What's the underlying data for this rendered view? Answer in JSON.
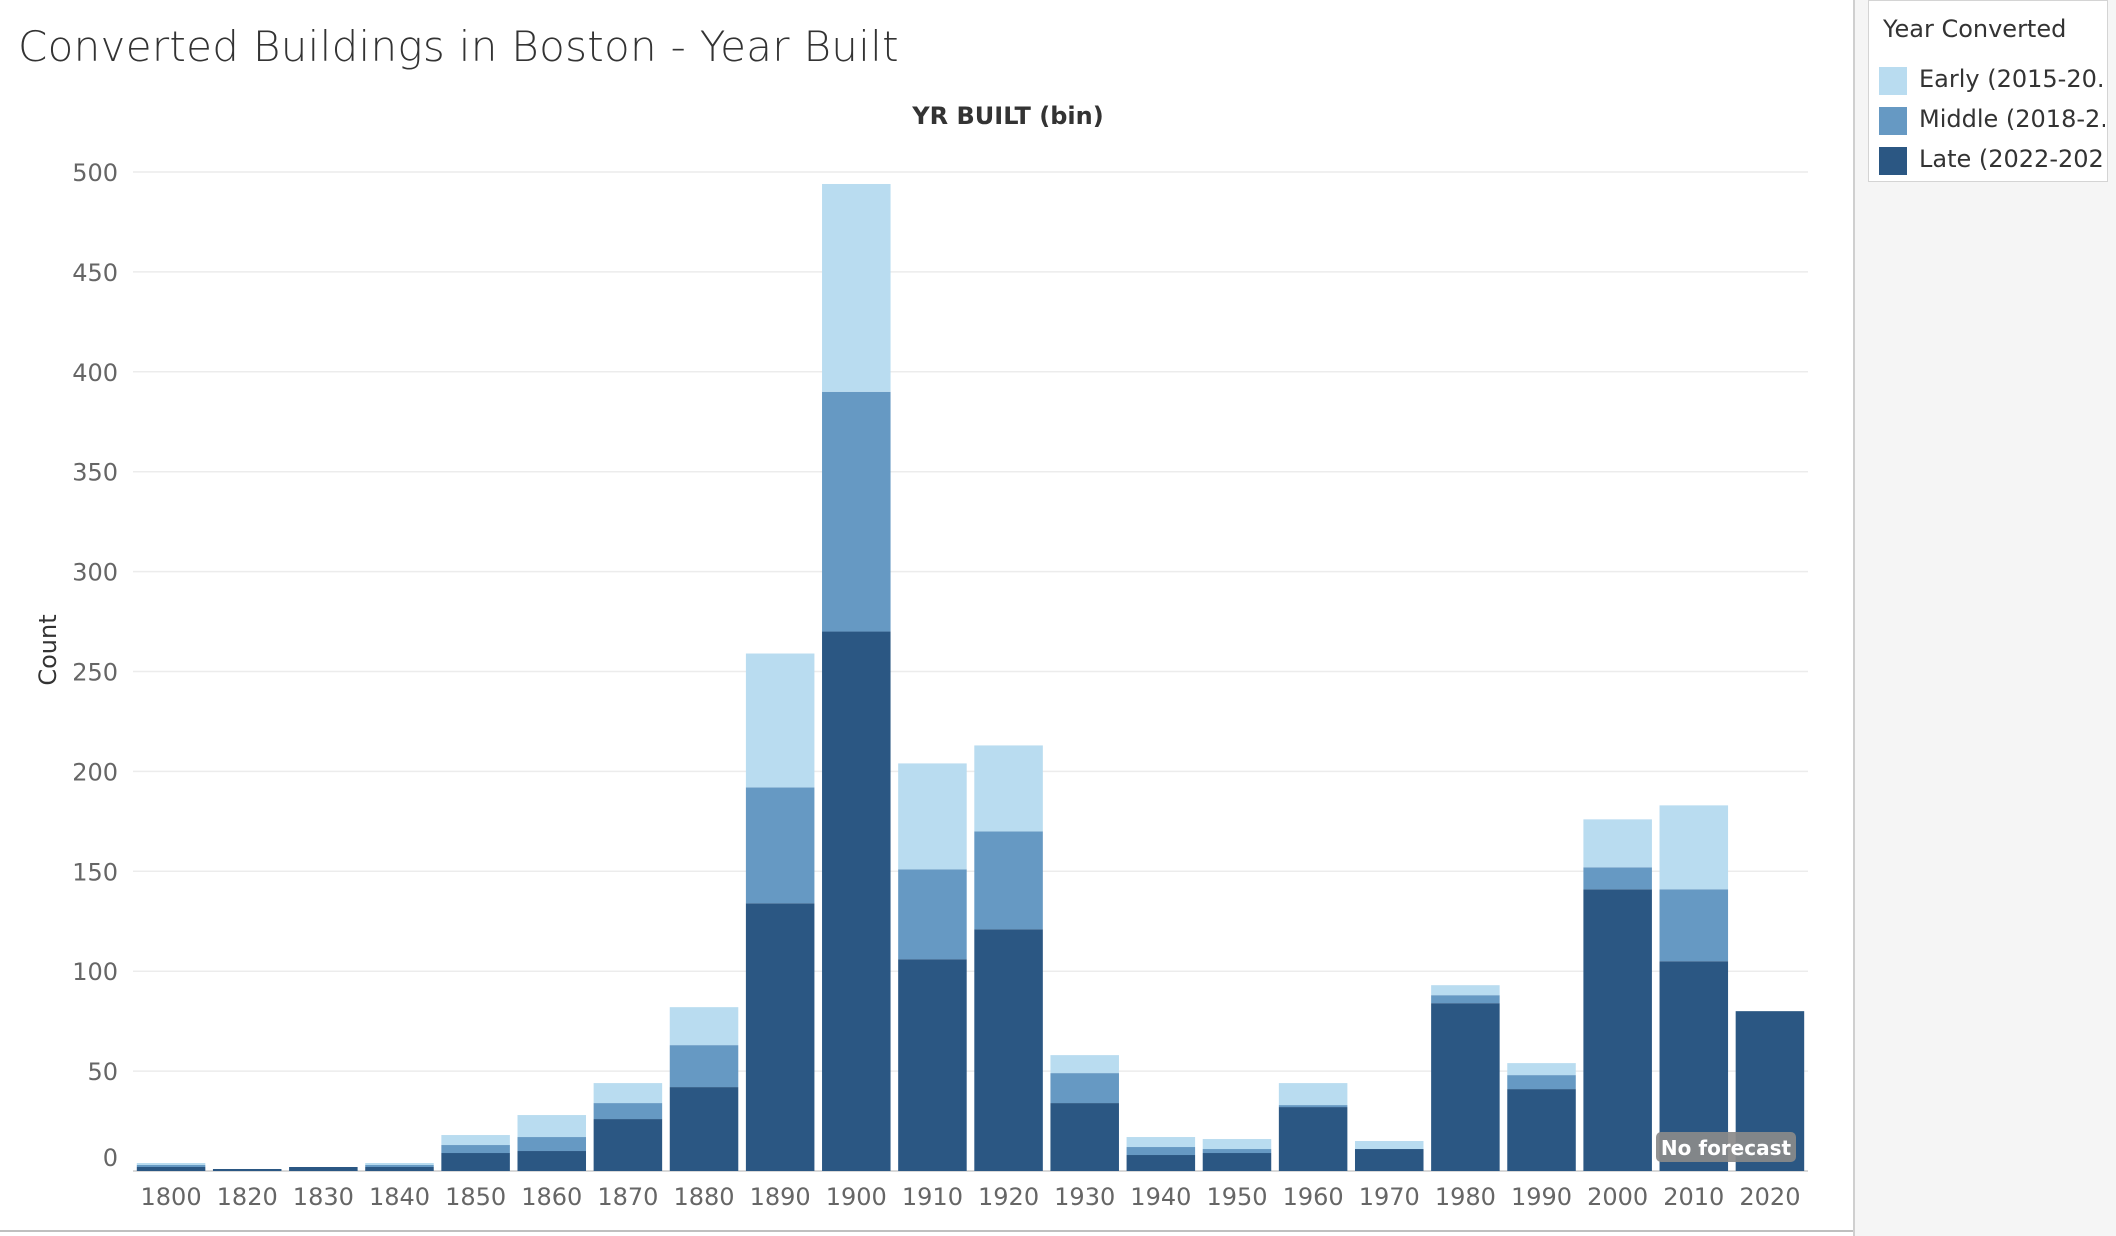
{
  "title": "Converted Buildings in Boston - Year Built",
  "legend": {
    "title": "Year Converted",
    "items": [
      {
        "label": "Early (2015-20..",
        "color": "#b9dcf0"
      },
      {
        "label": "Middle (2018-2..",
        "color": "#6699c3"
      },
      {
        "label": "Late (2022-202..",
        "color": "#2b5783"
      }
    ]
  },
  "forecast_badge": "No forecast",
  "chart_data": {
    "type": "bar",
    "stacked": true,
    "title": "Converted Buildings in Boston - Year Built",
    "xlabel": "YR BUILT (bin)",
    "ylabel": "Count",
    "ylim": [
      0,
      500
    ],
    "yticks": [
      0,
      50,
      100,
      150,
      200,
      250,
      300,
      350,
      400,
      450,
      500
    ],
    "grid": true,
    "legend_position": "top-right",
    "categories": [
      "1800",
      "1820",
      "1830",
      "1840",
      "1850",
      "1860",
      "1870",
      "1880",
      "1890",
      "1900",
      "1910",
      "1920",
      "1930",
      "1940",
      "1950",
      "1960",
      "1970",
      "1980",
      "1990",
      "2000",
      "2010",
      "2020"
    ],
    "series": [
      {
        "name": "Late (2022-202..",
        "color": "#2b5783",
        "values": [
          2,
          1,
          2,
          2,
          9,
          10,
          26,
          42,
          134,
          270,
          106,
          121,
          34,
          8,
          9,
          32,
          11,
          84,
          41,
          141,
          105,
          80
        ]
      },
      {
        "name": "Middle (2018-2..",
        "color": "#6699c3",
        "values": [
          1,
          0,
          0,
          1,
          4,
          7,
          8,
          21,
          58,
          120,
          45,
          49,
          15,
          4,
          2,
          1,
          0,
          4,
          7,
          11,
          36,
          0
        ]
      },
      {
        "name": "Early (2015-20..",
        "color": "#b9dcf0",
        "values": [
          1,
          0,
          0,
          1,
          5,
          11,
          10,
          19,
          67,
          104,
          53,
          43,
          9,
          5,
          5,
          11,
          4,
          5,
          6,
          24,
          42,
          0
        ]
      }
    ]
  }
}
